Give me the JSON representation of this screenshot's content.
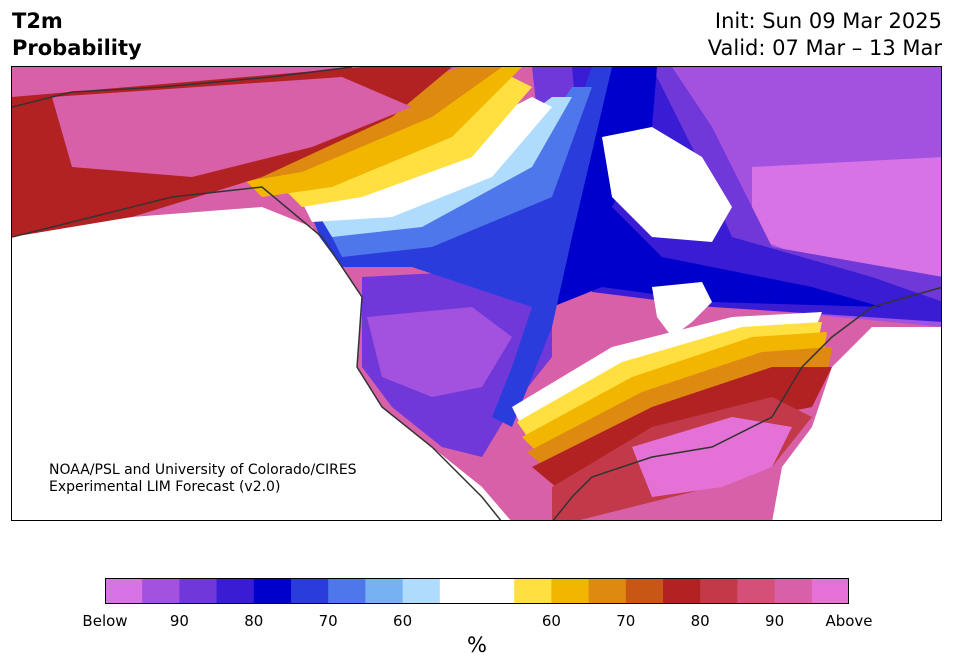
{
  "header": {
    "title_line1": "T2m",
    "title_line2": "Probability",
    "init": "Init: Sun 09 Mar 2025",
    "valid": "Valid: 07 Mar – 13 Mar"
  },
  "credit": {
    "line1": "NOAA/PSL and University of Colorado/CIRES",
    "line2": "Experimental LIM Forecast (v2.0)"
  },
  "colorbar": {
    "colors": [
      "#d873e6",
      "#a352e0",
      "#7038d8",
      "#3a1cd4",
      "#0000cc",
      "#2a3cdc",
      "#4d77ea",
      "#76b2f3",
      "#afdcfd",
      "#ffffff",
      "#ffffff",
      "#ffe040",
      "#f2b600",
      "#de8a10",
      "#c85614",
      "#b22222",
      "#c23a4a",
      "#d45078",
      "#d860a8",
      "#e472d6"
    ],
    "labels": [
      "Below",
      "90",
      "80",
      "70",
      "60",
      "60",
      "70",
      "80",
      "90",
      "Above"
    ],
    "unit": "%"
  },
  "map": {
    "fill_colors": {
      "above_far": "#d860a8",
      "above_high": "#b22222",
      "above_mid": "#c85614",
      "above_low": "#f2b600",
      "above_min": "#ffe040",
      "neutral": "#ffffff",
      "below_min": "#afdcfd",
      "below_low": "#4d77ea",
      "below_mid": "#0000cc",
      "below_high": "#3a1cd4",
      "below_far": "#7038d8",
      "below_extreme": "#a352e0",
      "below_top": "#d873e6"
    }
  }
}
